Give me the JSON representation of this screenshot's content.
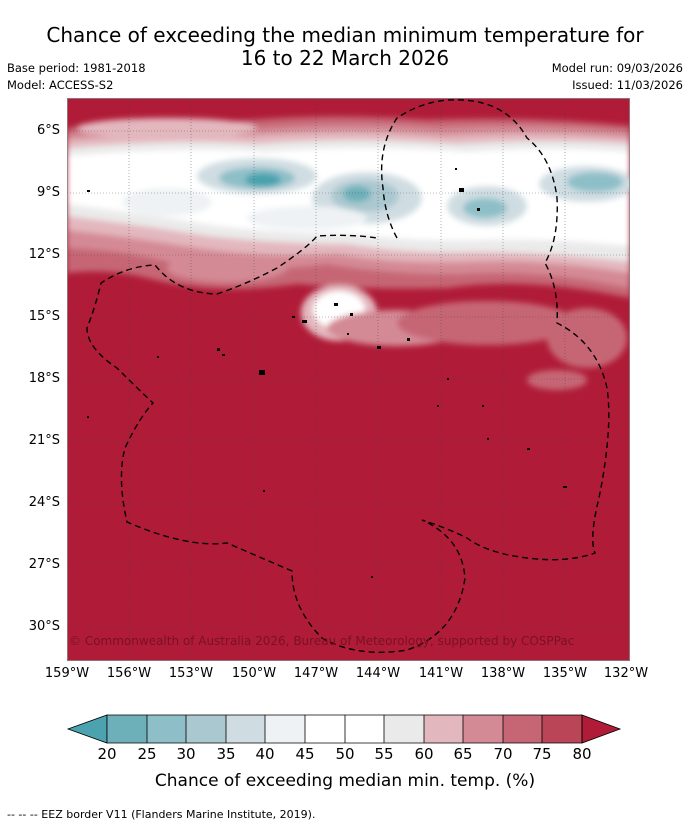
{
  "title_line1": "Chance of exceeding the median minimum temperature for",
  "title_line2": "16 to 22 March 2026",
  "base_period": "Base period: 1981-2018",
  "model": "Model: ACCESS-S2",
  "model_run": "Model run: 09/03/2026",
  "issued": "Issued: 11/03/2026",
  "copyright": "© Commonwealth of Australia 2026, Bureau of Meteorology, supported by COSPPac",
  "lat_labels": [
    "6°S",
    "9°S",
    "12°S",
    "15°S",
    "18°S",
    "21°S",
    "24°S",
    "27°S",
    "30°S"
  ],
  "lon_labels": [
    "159°W",
    "156°W",
    "153°W",
    "150°W",
    "147°W",
    "144°W",
    "141°W",
    "138°W",
    "135°W",
    "132°W"
  ],
  "colorbar": {
    "ticks": [
      "20",
      "25",
      "30",
      "35",
      "40",
      "45",
      "50",
      "55",
      "60",
      "65",
      "70",
      "75",
      "80"
    ],
    "colors": [
      "#4aa3ae",
      "#6db0ba",
      "#8ebfc8",
      "#aac8cf",
      "#cfdde2",
      "#eef2f4",
      "#ffffff",
      "#ffffff",
      "#eaeaea",
      "#e3b7be",
      "#d48a95",
      "#c66674",
      "#ba4556",
      "#b01c38"
    ],
    "title": "Chance of exceeding median min. temp. (%)"
  },
  "footnote": "-- -- -- EEZ border V11 (Flanders Marine Institute, 2019).",
  "colors": {
    "high": "#b01c38",
    "low": "#4aa3ae",
    "neutral": "#ffffff"
  }
}
